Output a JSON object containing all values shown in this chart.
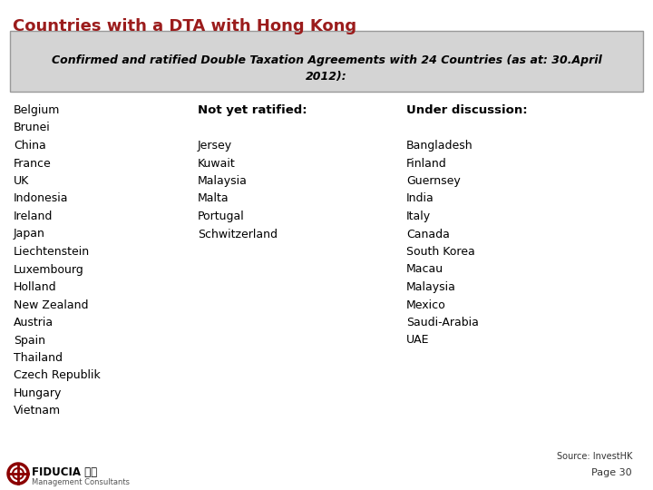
{
  "title": "Countries with a DTA with Hong Kong",
  "title_color": "#9b1c1c",
  "subtitle_line1": "Confirmed and ratified Double Taxation Agreements with 24 Countries (as at: 30.April",
  "subtitle_line2": "2012):",
  "subtitle_bg": "#d4d4d4",
  "bg_color": "#ffffff",
  "col2_header": "Not yet ratified:",
  "col3_header": "Under discussion:",
  "col1": [
    "Belgium",
    "Brunei",
    "China",
    "France",
    "UK",
    "Indonesia",
    "Ireland",
    "Japan",
    "Liechtenstein",
    "Luxembourg",
    "Holland",
    "New Zealand",
    "Austria",
    "Spain",
    "Thailand",
    "Czech Republik",
    "Hungary",
    "Vietnam"
  ],
  "col2": [
    "Jersey",
    "Kuwait",
    "Malaysia",
    "Malta",
    "Portugal",
    "Schwitzerland"
  ],
  "col3": [
    "Bangladesh",
    "Finland",
    "Guernsey",
    "India",
    "Italy",
    "Canada",
    "South Korea",
    "Macau",
    "Malaysia",
    "Mexico",
    "Saudi-Arabia",
    "UAE"
  ],
  "source_text": "Source: InvestHK",
  "page_text": "Page 30",
  "footer_logo": "FIDUCIA 応信",
  "footer_sub": "Management Consultants",
  "title_fontsize": 13,
  "subtitle_fontsize": 9,
  "body_fontsize": 9,
  "header_fontsize": 9.5
}
